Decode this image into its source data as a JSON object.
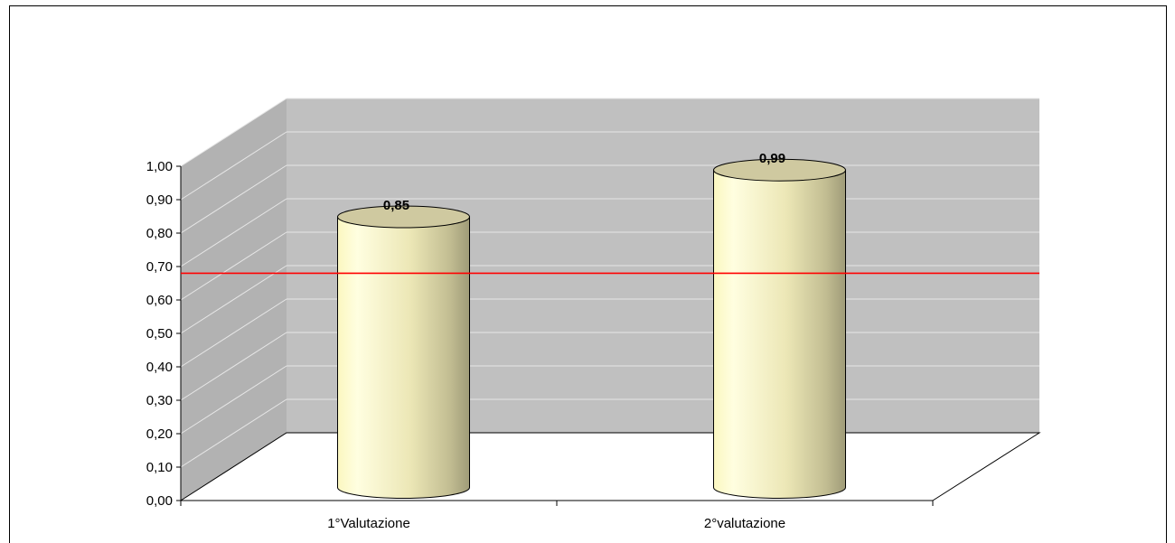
{
  "chart_data": {
    "type": "bar",
    "style": "3d-cylinder",
    "categories": [
      "1°Valutazione",
      "2°valutazione"
    ],
    "values": [
      0.85,
      0.99
    ],
    "value_labels": [
      "0,85",
      "0,99"
    ],
    "ylim": [
      0,
      1
    ],
    "yticks": [
      {
        "value": 0.0,
        "label": "0,00"
      },
      {
        "value": 0.1,
        "label": "0,10"
      },
      {
        "value": 0.2,
        "label": "0,20"
      },
      {
        "value": 0.3,
        "label": "0,30"
      },
      {
        "value": 0.4,
        "label": "0,40"
      },
      {
        "value": 0.5,
        "label": "0,50"
      },
      {
        "value": 0.6,
        "label": "0,60"
      },
      {
        "value": 0.7,
        "label": "0,70"
      },
      {
        "value": 0.8,
        "label": "0,80"
      },
      {
        "value": 0.9,
        "label": "0,90"
      },
      {
        "value": 1.0,
        "label": "1,00"
      }
    ],
    "reference_line": {
      "value": 0.68,
      "color": "#ff0000"
    },
    "title": "",
    "xlabel": "",
    "ylabel": "",
    "grid": true,
    "legend": "none",
    "colors": {
      "wall": "#c0c0c0",
      "side_wall": "#b2b2b2",
      "grid": "#e6e6e6",
      "bar_top": "#cfc9a0",
      "bar_light": "#fffee0",
      "bar_dark": "#a09c78"
    }
  }
}
